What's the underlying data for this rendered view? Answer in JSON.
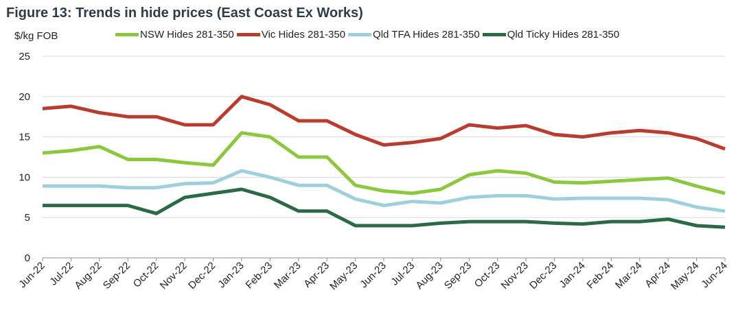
{
  "figure_title": "Figure 13: Trends in hide prices (East Coast Ex Works)",
  "chart_data": {
    "type": "line",
    "title": "Figure 13: Trends in hide prices (East Coast Ex Works)",
    "ylabel": "$/kg FOB",
    "xlabel": "",
    "ylim": [
      0,
      25
    ],
    "yticks": [
      0,
      5,
      10,
      15,
      20,
      25
    ],
    "grid": true,
    "legend_position": "top",
    "x": [
      "Jun-22",
      "Jul-22",
      "Aug-22",
      "Sep-22",
      "Oct-22",
      "Nov-22",
      "Dec-22",
      "Jan-23",
      "Feb-23",
      "Mar-23",
      "Apr-23",
      "May-23",
      "Jun-23",
      "Jul-23",
      "Aug-23",
      "Sep-23",
      "Oct-23",
      "Nov-23",
      "Dec-23",
      "Jan-24",
      "Feb-24",
      "Mar-24",
      "Apr-24",
      "May-24",
      "Jun-24"
    ],
    "series": [
      {
        "name": "NSW Hides 281-350",
        "color": "#8dc63f",
        "values": [
          13.0,
          13.3,
          13.8,
          12.2,
          12.2,
          11.8,
          11.5,
          15.5,
          15.0,
          12.5,
          12.5,
          9.0,
          8.3,
          8.0,
          8.5,
          10.3,
          10.8,
          10.5,
          9.4,
          9.3,
          9.5,
          9.7,
          9.9,
          8.9,
          8.0
        ]
      },
      {
        "name": "Vic Hides 281-350",
        "color": "#b83c30",
        "values": [
          18.5,
          18.8,
          18.0,
          17.5,
          17.5,
          16.5,
          16.5,
          20.0,
          19.0,
          17.0,
          17.0,
          15.3,
          14.0,
          14.3,
          14.8,
          16.5,
          16.1,
          16.4,
          15.3,
          15.0,
          15.5,
          15.8,
          15.5,
          14.8,
          13.5
        ]
      },
      {
        "name": "Qld TFA Hides 281-350",
        "color": "#9fcfdd",
        "values": [
          8.9,
          8.9,
          8.9,
          8.7,
          8.7,
          9.2,
          9.3,
          10.8,
          10.0,
          9.0,
          9.0,
          7.3,
          6.5,
          7.0,
          6.8,
          7.5,
          7.7,
          7.7,
          7.3,
          7.4,
          7.4,
          7.4,
          7.2,
          6.3,
          5.8
        ]
      },
      {
        "name": "Qld Ticky Hides 281-350",
        "color": "#2a6b45",
        "values": [
          6.5,
          6.5,
          6.5,
          6.5,
          5.5,
          7.5,
          8.0,
          8.5,
          7.5,
          5.8,
          5.8,
          4.0,
          4.0,
          4.0,
          4.3,
          4.5,
          4.5,
          4.5,
          4.3,
          4.2,
          4.5,
          4.5,
          4.8,
          4.0,
          3.8
        ]
      }
    ]
  }
}
